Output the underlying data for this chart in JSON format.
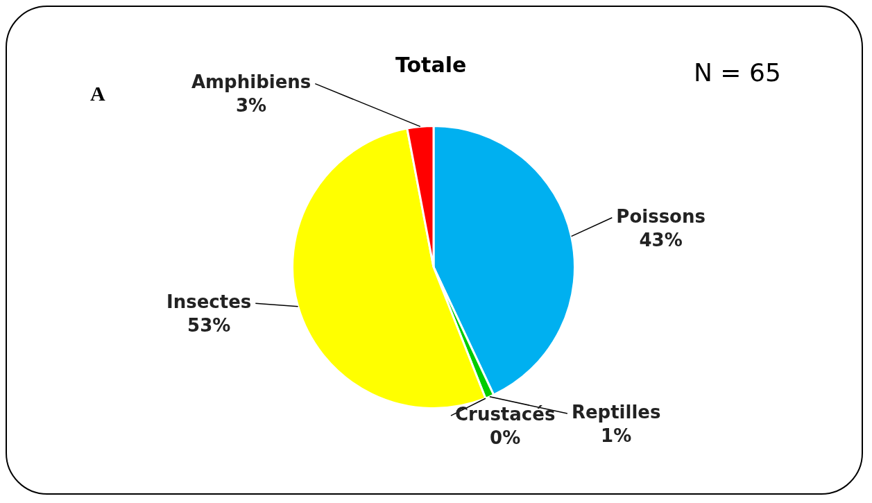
{
  "chart_data": {
    "type": "pie",
    "title": "Totale",
    "annotations": [
      "A",
      "N = 65"
    ],
    "categories": [
      "Poissons",
      "Reptilles",
      "Crustacés",
      "Insectes",
      "Amphibiens"
    ],
    "values": [
      43,
      1,
      0,
      53,
      3
    ],
    "value_labels": [
      "43%",
      "1%",
      "0%",
      "53%",
      "3%"
    ],
    "colors": [
      "#00b0f0",
      "#00cc00",
      "#000000",
      "#ffff00",
      "#ff0000"
    ],
    "legend": false
  }
}
